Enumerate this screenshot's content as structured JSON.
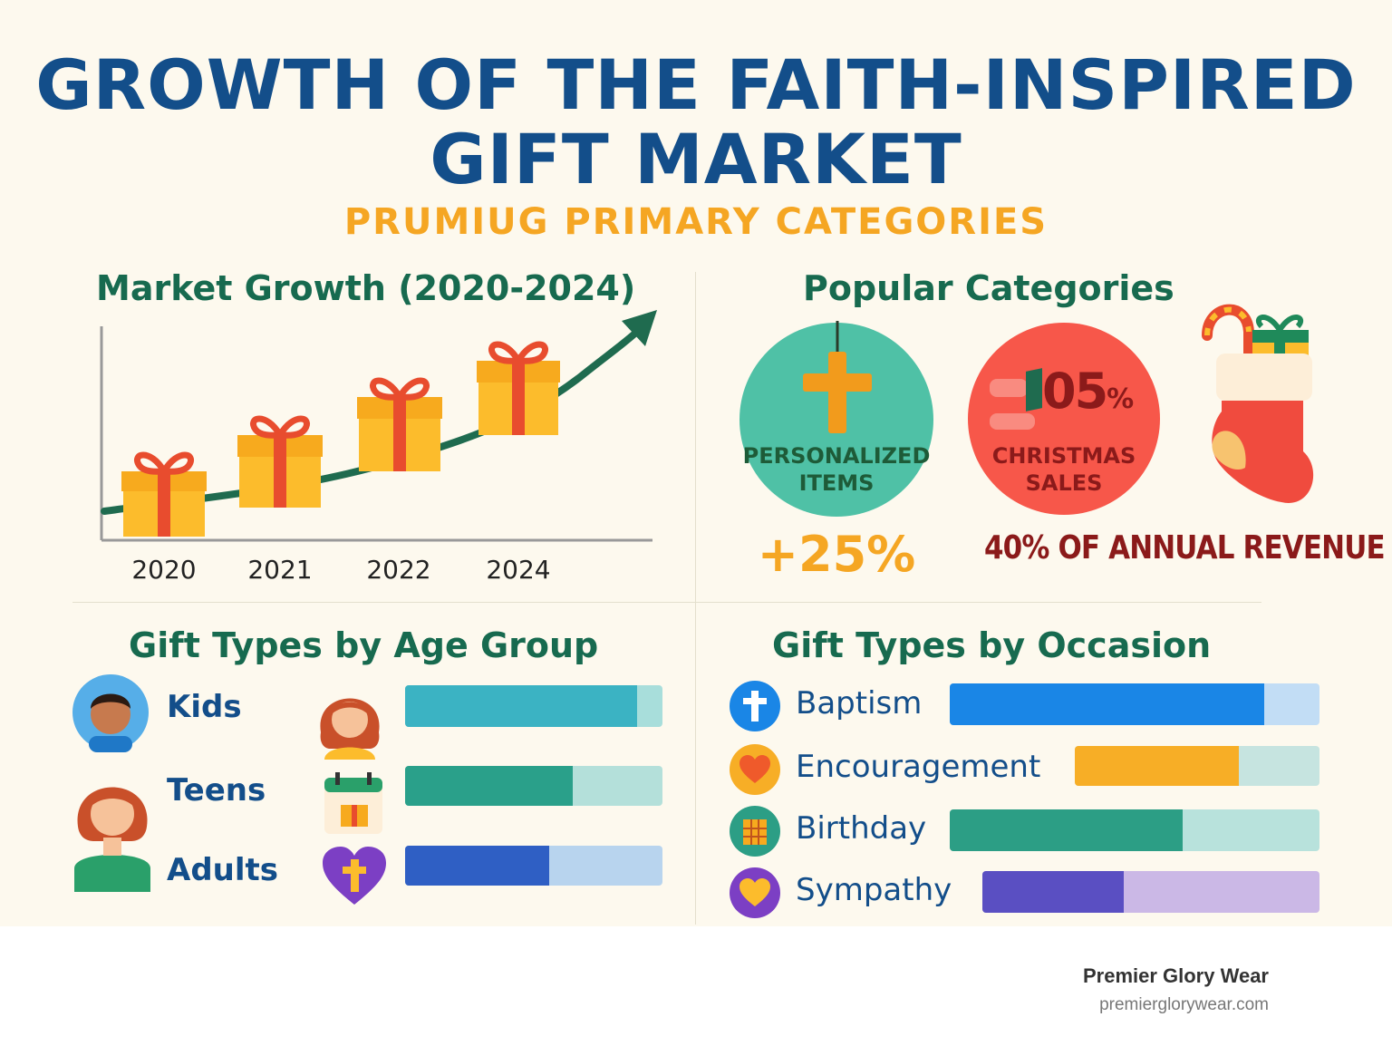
{
  "header": {
    "title_line1": "GROWTH OF THE FAITH-INSPIRED",
    "title_line2": "GIFT MARKET",
    "subtitle": "PRUMIUG PRIMARY CATEGORIES"
  },
  "market_growth": {
    "heading": "Market Growth (2020-2024)",
    "years": [
      "2020",
      "2021",
      "2022",
      "2024"
    ]
  },
  "popular_categories": {
    "heading": "Popular Categories",
    "personalized": {
      "label_line1": "PERSONALIZED",
      "label_line2": "ITEMS",
      "stat": "+25%"
    },
    "christmas": {
      "value": "05",
      "percent": "%",
      "label_line1": "CHRISTMAS",
      "label_line2": "SALES",
      "stat": "40% OF ANNUAL REVENUE"
    }
  },
  "age_group": {
    "heading": "Gift Types by Age Group",
    "items": [
      {
        "label": "Kids",
        "fill": 0.9,
        "fill_color": "#3bb3c3",
        "track_color": "#a8dedb"
      },
      {
        "label": "Teens",
        "fill": 0.65,
        "fill_color": "#2aa08a",
        "track_color": "#b4e0da"
      },
      {
        "label": "Adults",
        "fill": 0.56,
        "fill_color": "#2f5fc4",
        "track_color": "#b8d4ee"
      }
    ]
  },
  "occasion": {
    "heading": "Gift Types by Occasion",
    "items": [
      {
        "label": "Baptism",
        "fill": 0.85,
        "fill_color": "#1a86e6",
        "track_color": "#c2ddf5"
      },
      {
        "label": "Encouragement",
        "fill": 0.67,
        "fill_color": "#f7ae26",
        "track_color": "#c6e4e0"
      },
      {
        "label": "Birthday",
        "fill": 0.63,
        "fill_color": "#2c9e85",
        "track_color": "#b8e2dc"
      },
      {
        "label": "Sympathy",
        "fill": 0.42,
        "fill_color": "#5a4fc2",
        "track_color": "#cbb8e6"
      }
    ]
  },
  "footer": {
    "brand": "Premier Glory Wear",
    "url": "premierglorywear.com"
  },
  "icons": [
    "gift-box-icon",
    "growth-arrow-icon",
    "cross-pendant-icon",
    "candy-cane-icon",
    "christmas-stocking-icon",
    "kid-avatar-icon",
    "girl-avatar-icon",
    "teen-avatar-icon",
    "calendar-gift-icon",
    "heart-cross-icon",
    "cross-icon",
    "heart-icon",
    "gift-icon"
  ]
}
